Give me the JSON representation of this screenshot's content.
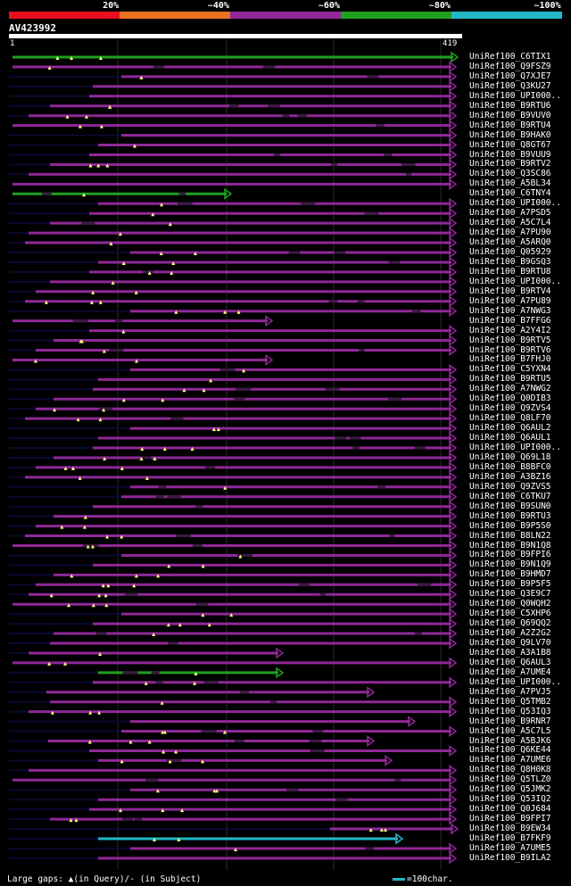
{
  "legend": {
    "labels": [
      "20%",
      "~40%",
      "~60%",
      "~80%",
      "~100%"
    ],
    "colors": [
      "#e8101e",
      "#e87020",
      "#902898",
      "#20a020",
      "#20b8c8"
    ]
  },
  "query": {
    "id": "AV423992",
    "start": "1",
    "end": "419"
  },
  "colors": {
    "hit": "#902898",
    "hit_high": "#20a020",
    "hit_top": "#20b8c8",
    "thin": "#0a0a30",
    "marker": "#ffff80"
  },
  "hits": [
    {
      "name": "UniRef100_C6TIX1",
      "cls": "green"
    },
    {
      "name": "UniRef100_Q9FSZ9",
      "cls": "purple"
    },
    {
      "name": "UniRef100_Q7XJE7",
      "cls": "purple"
    },
    {
      "name": "UniRef100_Q3KU27",
      "cls": "purple"
    },
    {
      "name": "UniRef100_UPI000..",
      "cls": "purple"
    },
    {
      "name": "UniRef100_B9RTU6",
      "cls": "purple"
    },
    {
      "name": "UniRef100_B9VUV0",
      "cls": "purple"
    },
    {
      "name": "UniRef100_B9RTU4",
      "cls": "purple"
    },
    {
      "name": "UniRef100_B9HAK0",
      "cls": "purple"
    },
    {
      "name": "UniRef100_Q8GT67",
      "cls": "purple"
    },
    {
      "name": "UniRef100_B9VUU9",
      "cls": "purple"
    },
    {
      "name": "UniRef100_B9RTV2",
      "cls": "purple"
    },
    {
      "name": "UniRef100_Q3SC86",
      "cls": "purple"
    },
    {
      "name": "UniRef100_A5BL34",
      "cls": "purple"
    },
    {
      "name": "UniRef100_C6TNY4",
      "cls": "green"
    },
    {
      "name": "UniRef100_UPI000..",
      "cls": "purple"
    },
    {
      "name": "UniRef100_A7PSD5",
      "cls": "purple"
    },
    {
      "name": "UniRef100_A5C7L4",
      "cls": "purple"
    },
    {
      "name": "UniRef100_A7PU90",
      "cls": "purple"
    },
    {
      "name": "UniRef100_A5ARQ0",
      "cls": "purple"
    },
    {
      "name": "UniRef100_Q05929",
      "cls": "purple"
    },
    {
      "name": "UniRef100_B9GSQ3",
      "cls": "purple"
    },
    {
      "name": "UniRef100_B9RTU8",
      "cls": "purple"
    },
    {
      "name": "UniRef100_UPI000..",
      "cls": "purple"
    },
    {
      "name": "UniRef100_B9RTV4",
      "cls": "purple"
    },
    {
      "name": "UniRef100_A7PU89",
      "cls": "purple"
    },
    {
      "name": "UniRef100_A7NWG3",
      "cls": "purple"
    },
    {
      "name": "UniRef100_B7FFG6",
      "cls": "purple"
    },
    {
      "name": "UniRef100_A2Y4I2",
      "cls": "purple"
    },
    {
      "name": "UniRef100_B9RTV5",
      "cls": "purple"
    },
    {
      "name": "UniRef100_B9RTV6",
      "cls": "purple"
    },
    {
      "name": "UniRef100_B7FHJ0",
      "cls": "purple"
    },
    {
      "name": "UniRef100_C5YXN4",
      "cls": "purple"
    },
    {
      "name": "UniRef100_B9RTU5",
      "cls": "purple"
    },
    {
      "name": "UniRef100_A7NWG2",
      "cls": "purple"
    },
    {
      "name": "UniRef100_Q0DIB3",
      "cls": "purple"
    },
    {
      "name": "UniRef100_Q9ZVS4",
      "cls": "purple"
    },
    {
      "name": "UniRef100_Q8LF70",
      "cls": "purple"
    },
    {
      "name": "UniRef100_Q6AUL2",
      "cls": "purple"
    },
    {
      "name": "UniRef100_Q6AUL1",
      "cls": "purple"
    },
    {
      "name": "UniRef100_UPI000..",
      "cls": "purple"
    },
    {
      "name": "UniRef100_Q69L18",
      "cls": "purple"
    },
    {
      "name": "UniRef100_B8BFC0",
      "cls": "purple"
    },
    {
      "name": "UniRef100_A3BZ16",
      "cls": "purple"
    },
    {
      "name": "UniRef100_Q9ZVS5",
      "cls": "purple"
    },
    {
      "name": "UniRef100_C6TKU7",
      "cls": "purple"
    },
    {
      "name": "UniRef100_B9SUN0",
      "cls": "purple"
    },
    {
      "name": "UniRef100_B9RTU3",
      "cls": "purple"
    },
    {
      "name": "UniRef100_B9P5S0",
      "cls": "purple"
    },
    {
      "name": "UniRef100_B8LN22",
      "cls": "purple"
    },
    {
      "name": "UniRef100_B9N1Q8",
      "cls": "purple"
    },
    {
      "name": "UniRef100_B9FPI6",
      "cls": "purple"
    },
    {
      "name": "UniRef100_B9N1Q9",
      "cls": "purple"
    },
    {
      "name": "UniRef100_B9HMD7",
      "cls": "purple"
    },
    {
      "name": "UniRef100_B9P5F5",
      "cls": "purple"
    },
    {
      "name": "UniRef100_Q3E9C7",
      "cls": "purple"
    },
    {
      "name": "UniRef100_Q0WQH2",
      "cls": "purple"
    },
    {
      "name": "UniRef100_C5XHP6",
      "cls": "purple"
    },
    {
      "name": "UniRef100_Q69QQ2",
      "cls": "purple"
    },
    {
      "name": "UniRef100_A2Z2G2",
      "cls": "purple"
    },
    {
      "name": "UniRef100_Q9LV70",
      "cls": "purple"
    },
    {
      "name": "UniRef100_A3A1B8",
      "cls": "purple"
    },
    {
      "name": "UniRef100_Q6AUL3",
      "cls": "purple"
    },
    {
      "name": "UniRef100_A7UME4",
      "cls": "green"
    },
    {
      "name": "UniRef100_UPI000..",
      "cls": "purple"
    },
    {
      "name": "UniRef100_A7PVJ5",
      "cls": "purple"
    },
    {
      "name": "UniRef100_Q5TMB2",
      "cls": "purple"
    },
    {
      "name": "UniRef100_Q53IQ3",
      "cls": "purple"
    },
    {
      "name": "UniRef100_B9RNR7",
      "cls": "purple"
    },
    {
      "name": "UniRef100_A5C7L5",
      "cls": "purple"
    },
    {
      "name": "UniRef100_A5BJK6",
      "cls": "purple"
    },
    {
      "name": "UniRef100_Q6KE44",
      "cls": "purple"
    },
    {
      "name": "UniRef100_A7UME6",
      "cls": "purple"
    },
    {
      "name": "UniRef100_Q8H0K8",
      "cls": "purple"
    },
    {
      "name": "UniRef100_Q5TLZ0",
      "cls": "purple"
    },
    {
      "name": "UniRef100_Q5JMK2",
      "cls": "purple"
    },
    {
      "name": "UniRef100_Q53IQ2",
      "cls": "purple"
    },
    {
      "name": "UniRef100_Q0J684",
      "cls": "purple"
    },
    {
      "name": "UniRef100_B9FPI7",
      "cls": "purple"
    },
    {
      "name": "UniRef100_B9EW34",
      "cls": "purple"
    },
    {
      "name": "UniRef100_B7FKF9",
      "cls": "cyan"
    },
    {
      "name": "UniRef100_A7UME5",
      "cls": "purple"
    },
    {
      "name": "UniRef100_B9ILA2",
      "cls": "purple"
    }
  ],
  "footer": {
    "gaps": "Large gaps: ▲(in Query)/- (in Subject)",
    "scale": "=100char."
  }
}
